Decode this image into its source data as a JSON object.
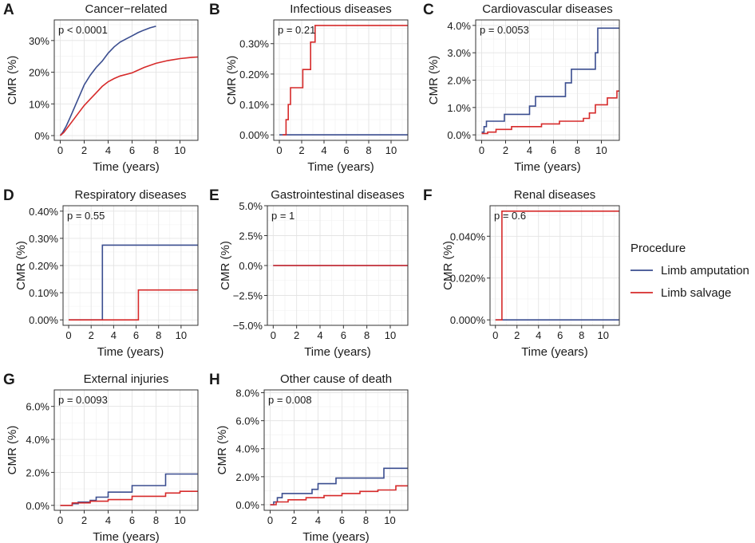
{
  "figure": {
    "x_label": "Time (years)",
    "y_label": "CMR (%)"
  },
  "legend": {
    "title": "Procedure",
    "entries": [
      {
        "label": "Limb amputation",
        "color": "#3a4d8f"
      },
      {
        "label": "Limb salvage",
        "color": "#d62a2a"
      }
    ]
  },
  "chart_data": [
    {
      "panel": "A",
      "title": "Cancer−related",
      "pvalue": "p < 0.0001",
      "type": "line",
      "xlim": [
        -0.5,
        11.5
      ],
      "ylim": [
        -1.5,
        36.5
      ],
      "x_ticks": [
        0,
        2,
        4,
        6,
        8,
        10
      ],
      "y_ticks": [
        0,
        10,
        20,
        30
      ],
      "y_tick_labels": [
        "0%",
        "10%",
        "20%",
        "30%"
      ],
      "series": [
        {
          "name": "Limb amputation",
          "step": false,
          "x": [
            0,
            0.2,
            0.5,
            0.8,
            1.2,
            1.6,
            2.0,
            2.5,
            3.0,
            3.5,
            4.0,
            4.5,
            5.0,
            5.5,
            6.0,
            6.5,
            7.0,
            7.5,
            8.0
          ],
          "y": [
            0,
            1,
            3,
            5.5,
            9,
            12.5,
            16,
            19,
            21.5,
            23.5,
            26,
            28,
            29.5,
            30.5,
            31.5,
            32.5,
            33.3,
            34,
            34.5
          ]
        },
        {
          "name": "Limb salvage",
          "step": false,
          "x": [
            0,
            0.3,
            0.6,
            1.0,
            1.5,
            2.0,
            2.5,
            3.0,
            3.5,
            4.0,
            4.5,
            5.0,
            6.0,
            7.0,
            8.0,
            9.0,
            10.0,
            11.0,
            11.5
          ],
          "y": [
            0,
            1,
            2.5,
            4.5,
            7,
            9.5,
            11.5,
            13.5,
            15.5,
            17,
            18,
            18.8,
            19.8,
            21.5,
            22.8,
            23.7,
            24.3,
            24.7,
            24.8
          ]
        }
      ]
    },
    {
      "panel": "B",
      "title": "Infectious diseases",
      "pvalue": "p = 0.21",
      "type": "line",
      "xlim": [
        -0.5,
        11.5
      ],
      "ylim": [
        -0.018,
        0.378
      ],
      "x_ticks": [
        0,
        2,
        4,
        6,
        8,
        10
      ],
      "y_ticks": [
        0,
        0.1,
        0.2,
        0.3
      ],
      "y_tick_labels": [
        "0.00%",
        "0.10%",
        "0.20%",
        "0.30%"
      ],
      "series": [
        {
          "name": "Limb amputation",
          "step": true,
          "x": [
            0,
            11.5
          ],
          "y": [
            0,
            0
          ]
        },
        {
          "name": "Limb salvage",
          "step": true,
          "x": [
            0.3,
            0.6,
            0.8,
            1.0,
            1.3,
            2.1,
            2.8,
            3.2,
            11.5
          ],
          "y": [
            0,
            0.05,
            0.1,
            0.155,
            0.155,
            0.215,
            0.305,
            0.36,
            0.36
          ]
        }
      ]
    },
    {
      "panel": "C",
      "title": "Cardiovascular diseases",
      "pvalue": "p = 0.0053",
      "type": "line",
      "xlim": [
        -0.5,
        11.5
      ],
      "ylim": [
        -0.2,
        4.2
      ],
      "x_ticks": [
        0,
        2,
        4,
        6,
        8,
        10
      ],
      "y_ticks": [
        0,
        1,
        2,
        3,
        4
      ],
      "y_tick_labels": [
        "0.0%",
        "1.0%",
        "2.0%",
        "3.0%",
        "4.0%"
      ],
      "series": [
        {
          "name": "Limb amputation",
          "step": true,
          "x": [
            0,
            0.2,
            0.4,
            1.9,
            4.0,
            4.5,
            7.0,
            7.5,
            9.5,
            9.7,
            11.5
          ],
          "y": [
            0.1,
            0.3,
            0.5,
            0.75,
            1.05,
            1.4,
            1.9,
            2.4,
            3.0,
            3.9,
            3.9
          ]
        },
        {
          "name": "Limb salvage",
          "step": true,
          "x": [
            0,
            0.5,
            1.2,
            2.5,
            5.0,
            6.5,
            8.5,
            9.0,
            9.5,
            10.5,
            11.3,
            11.5
          ],
          "y": [
            0.05,
            0.1,
            0.2,
            0.3,
            0.4,
            0.5,
            0.6,
            0.8,
            1.1,
            1.35,
            1.6,
            1.6
          ]
        }
      ]
    },
    {
      "panel": "D",
      "title": "Respiratory diseases",
      "pvalue": "p = 0.55",
      "type": "line",
      "xlim": [
        -0.5,
        11.5
      ],
      "ylim": [
        -0.02,
        0.42
      ],
      "x_ticks": [
        0,
        2,
        4,
        6,
        8,
        10
      ],
      "y_ticks": [
        0,
        0.1,
        0.2,
        0.3,
        0.4
      ],
      "y_tick_labels": [
        "0.00%",
        "0.10%",
        "0.20%",
        "0.30%",
        "0.40%"
      ],
      "series": [
        {
          "name": "Limb amputation",
          "step": true,
          "x": [
            0,
            3.0,
            11.5
          ],
          "y": [
            0,
            0.275,
            0.275
          ]
        },
        {
          "name": "Limb salvage",
          "step": true,
          "x": [
            0,
            6.2,
            11.5
          ],
          "y": [
            0,
            0.11,
            0.11
          ]
        }
      ]
    },
    {
      "panel": "E",
      "title": "Gastrointestinal diseases",
      "pvalue": "p = 1",
      "type": "line",
      "xlim": [
        -0.5,
        11.5
      ],
      "ylim": [
        -5.0,
        5.0
      ],
      "x_ticks": [
        0,
        2,
        4,
        6,
        8,
        10
      ],
      "y_ticks": [
        -5.0,
        -2.5,
        0,
        2.5,
        5.0
      ],
      "y_tick_labels": [
        "−5.0%",
        "−2.5%",
        "0.0%",
        "2.5%",
        "5.0%"
      ],
      "series": [
        {
          "name": "Limb amputation",
          "step": true,
          "x": [
            0,
            11.5
          ],
          "y": [
            0,
            0
          ]
        },
        {
          "name": "Limb salvage",
          "step": true,
          "x": [
            0,
            11.5
          ],
          "y": [
            0,
            0
          ]
        }
      ]
    },
    {
      "panel": "F",
      "title": "Renal diseases",
      "pvalue": "p = 0.6",
      "type": "line",
      "xlim": [
        -0.5,
        11.5
      ],
      "ylim": [
        -0.0026,
        0.0546
      ],
      "x_ticks": [
        0,
        2,
        4,
        6,
        8,
        10
      ],
      "y_ticks": [
        0,
        0.02,
        0.04
      ],
      "y_tick_labels": [
        "0.000%",
        "0.020%",
        "0.040%"
      ],
      "series": [
        {
          "name": "Limb amputation",
          "step": true,
          "x": [
            0,
            11.5
          ],
          "y": [
            0,
            0
          ]
        },
        {
          "name": "Limb salvage",
          "step": true,
          "x": [
            0,
            0.6,
            11.5
          ],
          "y": [
            0,
            0.052,
            0.052
          ]
        }
      ]
    },
    {
      "panel": "G",
      "title": "External injuries",
      "pvalue": "p = 0.0093",
      "type": "line",
      "xlim": [
        -0.5,
        11.5
      ],
      "ylim": [
        -0.3,
        7.0
      ],
      "x_ticks": [
        0,
        2,
        4,
        6,
        8,
        10
      ],
      "y_ticks": [
        0,
        2,
        4,
        6
      ],
      "y_tick_labels": [
        "0.0%",
        "2.0%",
        "4.0%",
        "6.0%"
      ],
      "series": [
        {
          "name": "Limb amputation",
          "step": true,
          "x": [
            0,
            1.0,
            1.5,
            2.5,
            3.0,
            4.0,
            6.0,
            8.8,
            11.5
          ],
          "y": [
            0,
            0.1,
            0.2,
            0.3,
            0.5,
            0.8,
            1.2,
            1.9,
            1.9
          ]
        },
        {
          "name": "Limb salvage",
          "step": true,
          "x": [
            0,
            1.0,
            2.5,
            4.0,
            6.0,
            8.8,
            10.0,
            11.5
          ],
          "y": [
            0,
            0.15,
            0.25,
            0.35,
            0.55,
            0.75,
            0.85,
            0.85
          ]
        }
      ]
    },
    {
      "panel": "H",
      "title": "Other cause of death",
      "pvalue": "p = 0.008",
      "type": "line",
      "xlim": [
        -0.5,
        11.5
      ],
      "ylim": [
        -0.4,
        8.2
      ],
      "x_ticks": [
        0,
        2,
        4,
        6,
        8,
        10
      ],
      "y_ticks": [
        0,
        2,
        4,
        6,
        8
      ],
      "y_tick_labels": [
        "0.0%",
        "2.0%",
        "4.0%",
        "6.0%",
        "8.0%"
      ],
      "series": [
        {
          "name": "Limb amputation",
          "step": true,
          "x": [
            0,
            0.3,
            0.6,
            1.0,
            3.5,
            4.0,
            5.5,
            9.5,
            11.5
          ],
          "y": [
            0,
            0.2,
            0.5,
            0.8,
            1.1,
            1.5,
            1.9,
            2.6,
            2.6
          ]
        },
        {
          "name": "Limb salvage",
          "step": true,
          "x": [
            0,
            0.5,
            1.5,
            3.0,
            4.5,
            6.0,
            7.5,
            9.0,
            10.5,
            11.5
          ],
          "y": [
            0,
            0.2,
            0.35,
            0.5,
            0.65,
            0.8,
            0.95,
            1.05,
            1.35,
            1.35
          ]
        }
      ]
    }
  ]
}
